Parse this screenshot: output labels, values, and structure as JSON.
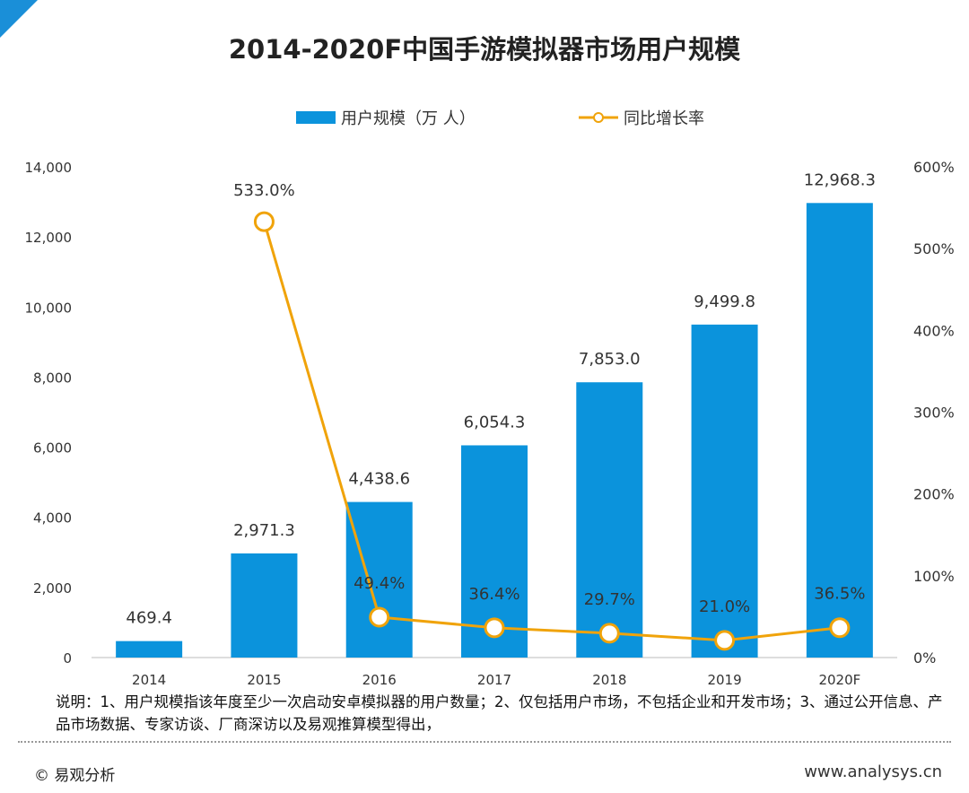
{
  "chart_data": {
    "type": "bar",
    "title": "2014-2020F中国手游模拟器市场用户规模",
    "categories": [
      "2014",
      "2015",
      "2016",
      "2017",
      "2018",
      "2019",
      "2020F"
    ],
    "series": [
      {
        "name": "用户规模（万 人）",
        "type": "bar",
        "axis": "left",
        "color": "#0b93dc",
        "values": [
          469.4,
          2971.3,
          4438.6,
          6054.3,
          7853.0,
          9499.8,
          12968.3
        ],
        "labels": [
          "469.4",
          "2,971.3",
          "4,438.6",
          "6,054.3",
          "7,853.0",
          "9,499.8",
          "12,968.3"
        ]
      },
      {
        "name": "同比增长率",
        "type": "line",
        "axis": "right",
        "color": "#f0a30a",
        "values": [
          null,
          533.0,
          49.4,
          36.4,
          29.7,
          21.0,
          36.5
        ],
        "labels": [
          "",
          "533.0%",
          "49.4%",
          "36.4%",
          "29.7%",
          "21.0%",
          "36.5%"
        ]
      }
    ],
    "y_left": {
      "ylim": [
        0,
        14000
      ],
      "ticks": [
        "0",
        "2,000",
        "4,000",
        "6,000",
        "8,000",
        "10,000",
        "12,000",
        "14,000"
      ]
    },
    "y_right": {
      "ylim": [
        0,
        600
      ],
      "ticks": [
        "0%",
        "100%",
        "200%",
        "300%",
        "400%",
        "500%",
        "600%"
      ]
    },
    "grid": false,
    "legend": "top"
  },
  "note": "说明：1、用户规模指该年度至少一次启动安卓模拟器的用户数量；2、仅包括用户市场，不包括企业和开发市场；3、通过公开信息、产品市场数据、专家访谈、厂商深访以及易观推算模型得出，",
  "footer": {
    "copyright": "© 易观分析",
    "website": "www.analysys.cn"
  }
}
